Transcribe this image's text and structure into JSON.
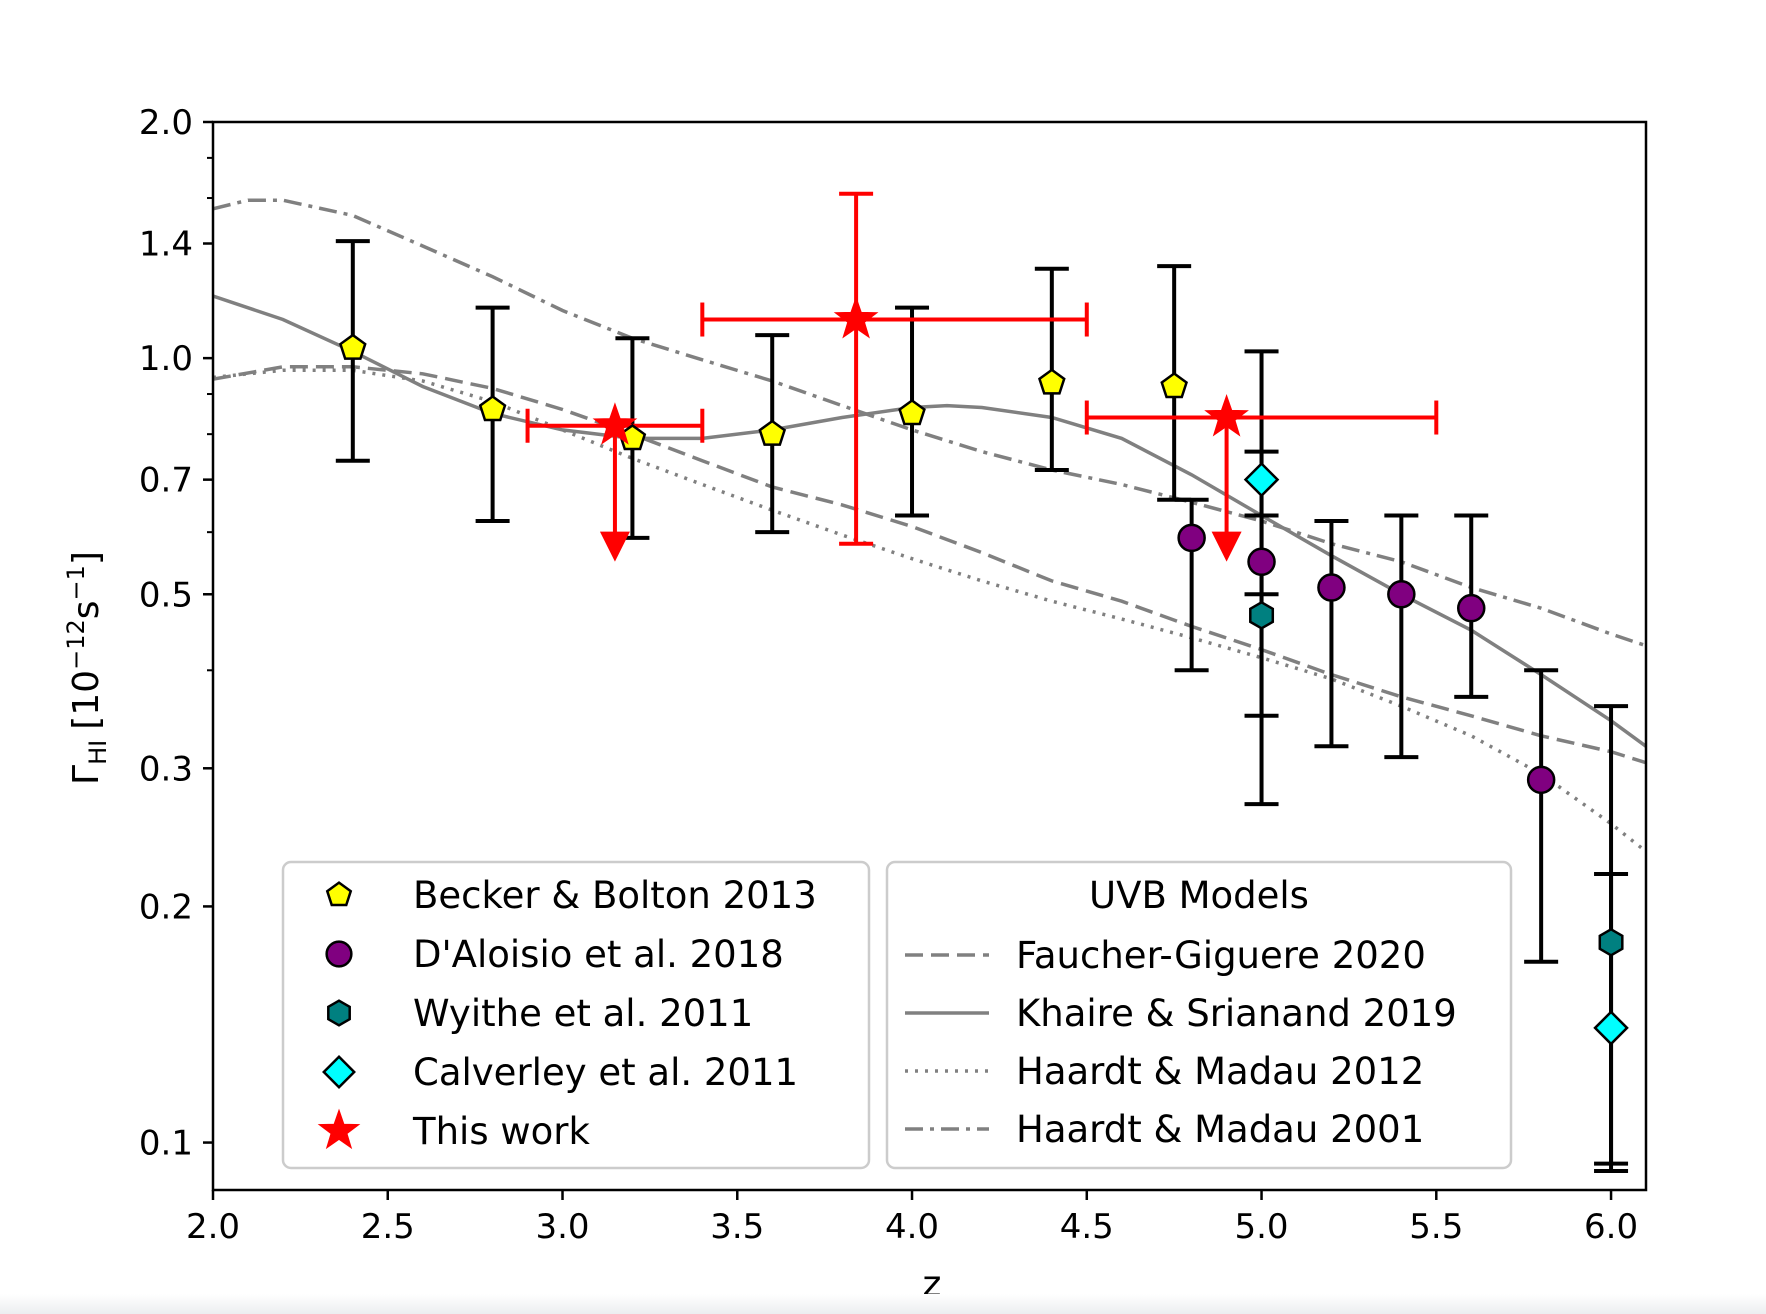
{
  "chart_data": {
    "type": "scatter",
    "xlabel": "z",
    "ylabel": "Γ_HI [10^-12 s^-1]",
    "ylabel_parts": {
      "gamma": "Γ",
      "sub": "HI",
      "open": "[10",
      "exp1": "−12",
      "s": "s",
      "exp2": "−1",
      "close": "]"
    },
    "xlim": [
      2.0,
      6.1
    ],
    "ylim": [
      0.087,
      2.0
    ],
    "yscale": "log",
    "grid": false,
    "xticks": [
      2.0,
      2.5,
      3.0,
      3.5,
      4.0,
      4.5,
      5.0,
      5.5,
      6.0
    ],
    "xtick_labels": [
      "2.0",
      "2.5",
      "3.0",
      "3.5",
      "4.0",
      "4.5",
      "5.0",
      "5.5",
      "6.0"
    ],
    "yticks": [
      0.1,
      0.2,
      0.3,
      0.5,
      0.7,
      1.0,
      1.4,
      2.0
    ],
    "ytick_labels": [
      "0.1",
      "0.2",
      "0.3",
      "0.5",
      "0.7",
      "1.0",
      "1.4",
      "2.0"
    ],
    "y_minor_ticks": [
      0.4,
      0.6,
      0.8,
      0.9,
      1.6,
      1.8
    ],
    "colors": {
      "becker": "#ffff00",
      "daloisio": "#800080",
      "wyithe": "#008080",
      "calverley": "#00ffff",
      "this_work": "#ff0000",
      "models": "#808080",
      "errorbar": "#000000"
    },
    "points": [
      {
        "name": "Becker & Bolton 2013",
        "marker": "pentagon",
        "color": "#ffff00",
        "data": [
          {
            "x": 2.4,
            "y": 1.03,
            "ylo": 0.74,
            "yhi": 1.41
          },
          {
            "x": 2.8,
            "y": 0.86,
            "ylo": 0.62,
            "yhi": 1.16
          },
          {
            "x": 3.2,
            "y": 0.79,
            "ylo": 0.59,
            "yhi": 1.06
          },
          {
            "x": 3.6,
            "y": 0.8,
            "ylo": 0.6,
            "yhi": 1.07
          },
          {
            "x": 4.0,
            "y": 0.85,
            "ylo": 0.63,
            "yhi": 1.16
          },
          {
            "x": 4.4,
            "y": 0.93,
            "ylo": 0.72,
            "yhi": 1.3
          },
          {
            "x": 4.75,
            "y": 0.92,
            "ylo": 0.66,
            "yhi": 1.31
          }
        ]
      },
      {
        "name": "D'Aloisio et al. 2018",
        "marker": "circle",
        "color": "#800080",
        "data": [
          {
            "x": 4.8,
            "y": 0.59,
            "ylo": 0.4,
            "yhi": 0.66
          },
          {
            "x": 5.0,
            "y": 0.55,
            "ylo": 0.5,
            "yhi": 1.02
          },
          {
            "x": 5.2,
            "y": 0.51,
            "ylo": 0.32,
            "yhi": 0.62
          },
          {
            "x": 5.4,
            "y": 0.5,
            "ylo": 0.31,
            "yhi": 0.63
          },
          {
            "x": 5.6,
            "y": 0.48,
            "ylo": 0.37,
            "yhi": 0.63
          },
          {
            "x": 5.8,
            "y": 0.29,
            "ylo": 0.17,
            "yhi": 0.4
          }
        ]
      },
      {
        "name": "Wyithe et al. 2011",
        "marker": "hexagon",
        "color": "#008080",
        "data": [
          {
            "x": 5.0,
            "y": 0.47,
            "ylo": 0.27,
            "yhi": 0.63
          },
          {
            "x": 6.0,
            "y": 0.18,
            "ylo": 0.094,
            "yhi": 0.22
          }
        ]
      },
      {
        "name": "Calverley et al. 2011",
        "marker": "diamond",
        "color": "#00ffff",
        "data": [
          {
            "x": 5.0,
            "y": 0.7,
            "ylo": 0.35,
            "yhi": 0.76
          },
          {
            "x": 6.0,
            "y": 0.14,
            "ylo": 0.092,
            "yhi": 0.36
          }
        ]
      }
    ],
    "this_work": {
      "name": "This work",
      "color": "#ff0000",
      "data": [
        {
          "x": 3.15,
          "y": 0.82,
          "xlo": 2.9,
          "xhi": 3.4,
          "upper_limit": true,
          "arrow_to": 0.56
        },
        {
          "x": 3.84,
          "y": 1.12,
          "xlo": 3.4,
          "xhi": 4.5,
          "ylo": 0.58,
          "yhi": 1.62
        },
        {
          "x": 4.9,
          "y": 0.84,
          "xlo": 4.5,
          "xhi": 5.5,
          "upper_limit": true,
          "arrow_to": 0.56
        }
      ]
    },
    "models": [
      {
        "name": "Faucher-Giguere 2020",
        "style": "dashed",
        "x": [
          2.0,
          2.2,
          2.4,
          2.6,
          2.8,
          3.0,
          3.2,
          3.4,
          3.6,
          3.8,
          4.0,
          4.2,
          4.4,
          4.6,
          4.8,
          5.0,
          5.2,
          5.4,
          5.6,
          5.8,
          6.0,
          6.1
        ],
        "y": [
          0.94,
          0.975,
          0.975,
          0.955,
          0.915,
          0.86,
          0.8,
          0.74,
          0.685,
          0.65,
          0.61,
          0.565,
          0.52,
          0.49,
          0.455,
          0.425,
          0.395,
          0.37,
          0.35,
          0.33,
          0.315,
          0.305
        ]
      },
      {
        "name": "Khaire & Srianand 2019",
        "style": "solid",
        "x": [
          2.0,
          2.2,
          2.4,
          2.6,
          2.8,
          3.0,
          3.2,
          3.4,
          3.6,
          3.8,
          4.0,
          4.1,
          4.2,
          4.4,
          4.6,
          4.8,
          5.0,
          5.2,
          5.4,
          5.6,
          5.8,
          6.0,
          6.1
        ],
        "y": [
          1.2,
          1.12,
          1.02,
          0.92,
          0.85,
          0.81,
          0.79,
          0.79,
          0.81,
          0.84,
          0.865,
          0.87,
          0.865,
          0.84,
          0.79,
          0.71,
          0.63,
          0.56,
          0.5,
          0.45,
          0.395,
          0.345,
          0.32
        ]
      },
      {
        "name": "Haardt & Madau 2012",
        "style": "dotted",
        "x": [
          2.0,
          2.2,
          2.4,
          2.6,
          2.8,
          3.0,
          3.2,
          3.4,
          3.6,
          3.8,
          4.0,
          4.2,
          4.4,
          4.6,
          4.8,
          5.0,
          5.2,
          5.4,
          5.6,
          5.8,
          6.0,
          6.1
        ],
        "y": [
          0.945,
          0.965,
          0.965,
          0.935,
          0.88,
          0.81,
          0.745,
          0.69,
          0.64,
          0.595,
          0.555,
          0.52,
          0.49,
          0.465,
          0.44,
          0.415,
          0.39,
          0.36,
          0.33,
          0.295,
          0.255,
          0.235
        ]
      },
      {
        "name": "Haardt & Madau 2001",
        "style": "dashdot",
        "x": [
          2.0,
          2.1,
          2.2,
          2.4,
          2.6,
          2.8,
          3.0,
          3.2,
          3.4,
          3.6,
          3.8,
          4.0,
          4.2,
          4.4,
          4.6,
          4.8,
          5.0,
          5.2,
          5.4,
          5.6,
          5.8,
          6.0,
          6.1
        ],
        "y": [
          1.55,
          1.59,
          1.59,
          1.52,
          1.39,
          1.27,
          1.15,
          1.06,
          0.995,
          0.935,
          0.87,
          0.81,
          0.76,
          0.72,
          0.69,
          0.655,
          0.62,
          0.58,
          0.55,
          0.51,
          0.48,
          0.445,
          0.43
        ]
      }
    ],
    "legend_points": {
      "placement": "lower-left",
      "entries": [
        {
          "marker": "pentagon",
          "color": "#ffff00",
          "label": "Becker & Bolton 2013"
        },
        {
          "marker": "circle",
          "color": "#800080",
          "label": "D'Aloisio et al. 2018"
        },
        {
          "marker": "hexagon",
          "color": "#008080",
          "label": "Wyithe et al. 2011"
        },
        {
          "marker": "diamond",
          "color": "#00ffff",
          "label": "Calverley et al. 2011"
        },
        {
          "marker": "star",
          "color": "#ff0000",
          "label": "This work"
        }
      ]
    },
    "legend_models": {
      "placement": "lower-center",
      "title": "UVB Models",
      "entries": [
        {
          "style": "dashed",
          "label": "Faucher-Giguere 2020"
        },
        {
          "style": "solid",
          "label": "Khaire & Srianand 2019"
        },
        {
          "style": "dotted",
          "label": "Haardt & Madau 2012"
        },
        {
          "style": "dashdot",
          "label": "Haardt & Madau 2001"
        }
      ]
    }
  }
}
